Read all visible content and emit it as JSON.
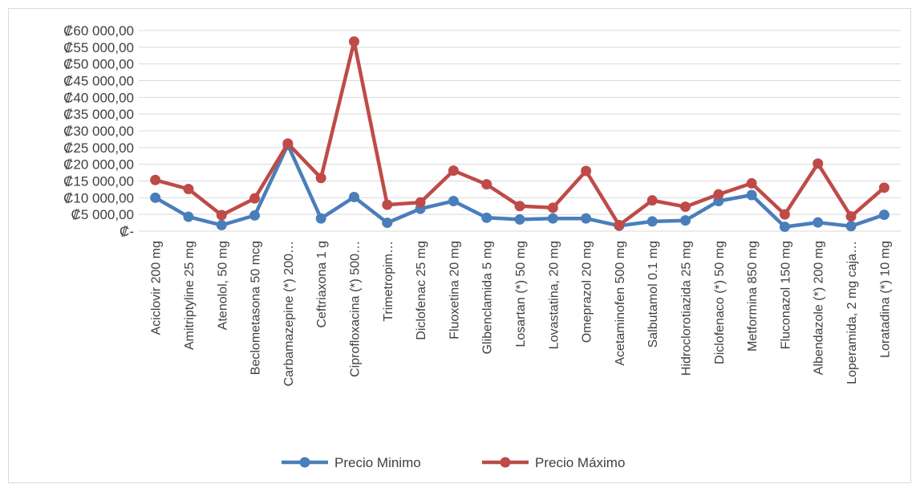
{
  "chart_data": {
    "type": "line",
    "title": "",
    "xlabel": "",
    "ylabel": "",
    "ylim": [
      0,
      60000
    ],
    "grid": true,
    "legend_position": "bottom",
    "y_ticks": [
      {
        "value": 0,
        "label": "₡-"
      },
      {
        "value": 5000,
        "label": "₡5 000,00"
      },
      {
        "value": 10000,
        "label": "₡10 000,00"
      },
      {
        "value": 15000,
        "label": "₡15 000,00"
      },
      {
        "value": 20000,
        "label": "₡20 000,00"
      },
      {
        "value": 25000,
        "label": "₡25 000,00"
      },
      {
        "value": 30000,
        "label": "₡30 000,00"
      },
      {
        "value": 35000,
        "label": "₡35 000,00"
      },
      {
        "value": 40000,
        "label": "₡40 000,00"
      },
      {
        "value": 45000,
        "label": "₡45 000,00"
      },
      {
        "value": 50000,
        "label": "₡50 000,00"
      },
      {
        "value": 55000,
        "label": "₡55 000,00"
      },
      {
        "value": 60000,
        "label": "₡60 000,00"
      }
    ],
    "categories": [
      "Aciclovir 200 mg",
      "Amitriptyline 25 mg",
      "Atenolol, 50 mg",
      "Beclometasona 50 mcg",
      "Carbamazepine (*) 200…",
      "Ceftriaxona 1 g",
      "Ciprofloxacina (*) 500…",
      "Trimetropim…",
      "Diclofenac 25 mg",
      "Fluoxetina 20 mg",
      "Glibenclamida 5 mg",
      "Losartan (*) 50 mg",
      "Lovastatina, 20 mg",
      "Omeprazol 20 mg",
      "Acetaminofen 500 mg",
      "Salbutamol 0.1 mg",
      "Hidroclorotiazida 25 mg",
      "Diclofenaco (*) 50 mg",
      "Metformina 850 mg",
      "Fluconazol 150 mg",
      "Albendazole (*) 200 mg",
      "Loperamida, 2 mg caja…",
      "Loratadina (*) 10 mg"
    ],
    "series": [
      {
        "name": "Precio Minimo",
        "color": "#4a7ebb",
        "values": [
          10000,
          4300,
          1800,
          4700,
          25800,
          3800,
          10200,
          2500,
          6700,
          9000,
          4000,
          3500,
          3800,
          3800,
          1600,
          2900,
          3200,
          9000,
          10800,
          1300,
          2600,
          1500,
          4900
        ]
      },
      {
        "name": "Precio Máximo",
        "color": "#be4b48",
        "values": [
          15300,
          12600,
          4800,
          9800,
          26200,
          15900,
          56700,
          7900,
          8600,
          18100,
          14000,
          7500,
          7000,
          18000,
          1800,
          9200,
          7300,
          11000,
          14300,
          5000,
          20200,
          4400,
          13000
        ]
      }
    ]
  }
}
